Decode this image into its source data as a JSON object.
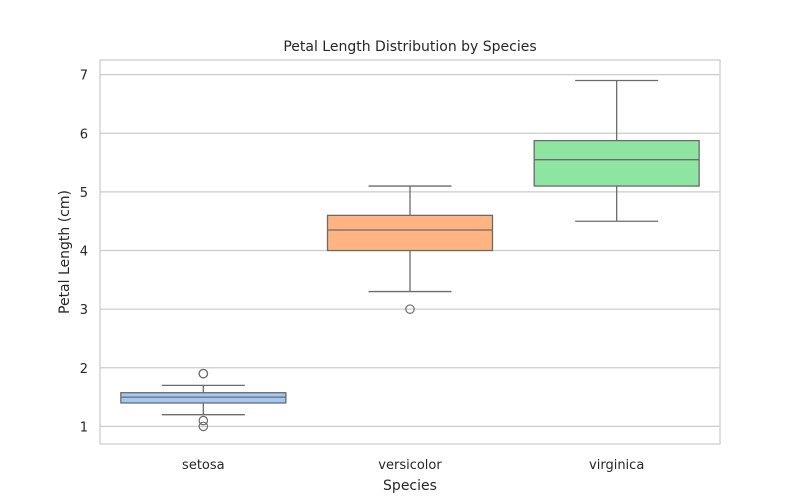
{
  "chart_data": {
    "type": "box",
    "title": "Petal Length Distribution by Species",
    "xlabel": "Species",
    "ylabel": "Petal Length (cm)",
    "categories": [
      "setosa",
      "versicolor",
      "virginica"
    ],
    "ylim": [
      0.7,
      7.25
    ],
    "yticks": [
      1,
      2,
      3,
      4,
      5,
      6,
      7
    ],
    "grid": true,
    "legend": "none",
    "series": [
      {
        "category": "setosa",
        "whisker_low": 1.2,
        "q1": 1.4,
        "median": 1.5,
        "q3": 1.575,
        "whisker_high": 1.7,
        "outliers": [
          1.0,
          1.1,
          1.9,
          1.9
        ],
        "color": "#a1c9f4"
      },
      {
        "category": "versicolor",
        "whisker_low": 3.3,
        "q1": 4.0,
        "median": 4.35,
        "q3": 4.6,
        "whisker_high": 5.1,
        "outliers": [
          3.0
        ],
        "color": "#ffb482"
      },
      {
        "category": "virginica",
        "whisker_low": 4.5,
        "q1": 5.1,
        "median": 5.55,
        "q3": 5.875,
        "whisker_high": 6.9,
        "outliers": [],
        "color": "#8de5a1"
      }
    ],
    "colors": {
      "grid": "#cccccc",
      "frame": "#cccccc",
      "box_edge": "#6b6b6b",
      "text": "#262626"
    }
  }
}
